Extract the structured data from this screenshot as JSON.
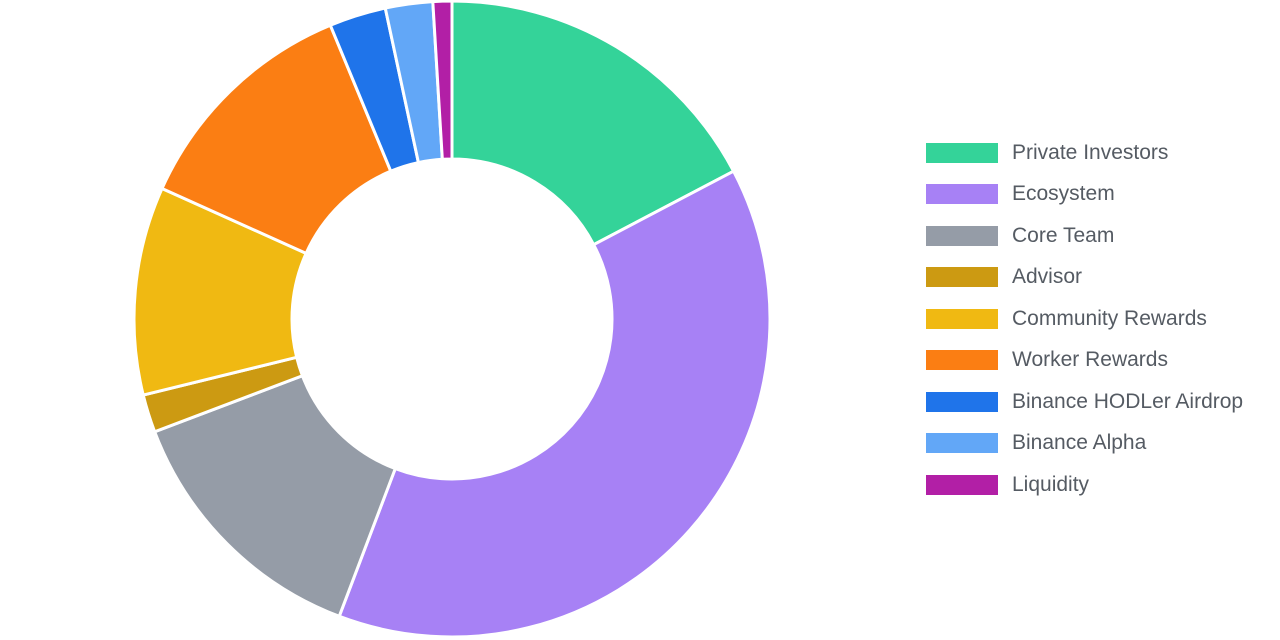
{
  "chart_data": {
    "type": "doughnut",
    "title": "",
    "legend_position": "right",
    "series": [
      {
        "name": "Private Investors",
        "value": 18.0,
        "color": "#34d399"
      },
      {
        "name": "Ecosystem",
        "value": 40.0,
        "color": "#a781f5"
      },
      {
        "name": "Core Team",
        "value": 14.0,
        "color": "#959ca7"
      },
      {
        "name": "Advisor",
        "value": 2.0,
        "color": "#cc9a12"
      },
      {
        "name": "Community Rewards",
        "value": 11.0,
        "color": "#f0b912"
      },
      {
        "name": "Worker Rewards",
        "value": 12.5,
        "color": "#fb7e13"
      },
      {
        "name": "Binance HODLer Airdrop",
        "value": 3.0,
        "color": "#1f74ea"
      },
      {
        "name": "Binance Alpha",
        "value": 2.5,
        "color": "#62a7f7"
      },
      {
        "name": "Liquidity",
        "value": 1.0,
        "color": "#b21fa6"
      }
    ]
  }
}
